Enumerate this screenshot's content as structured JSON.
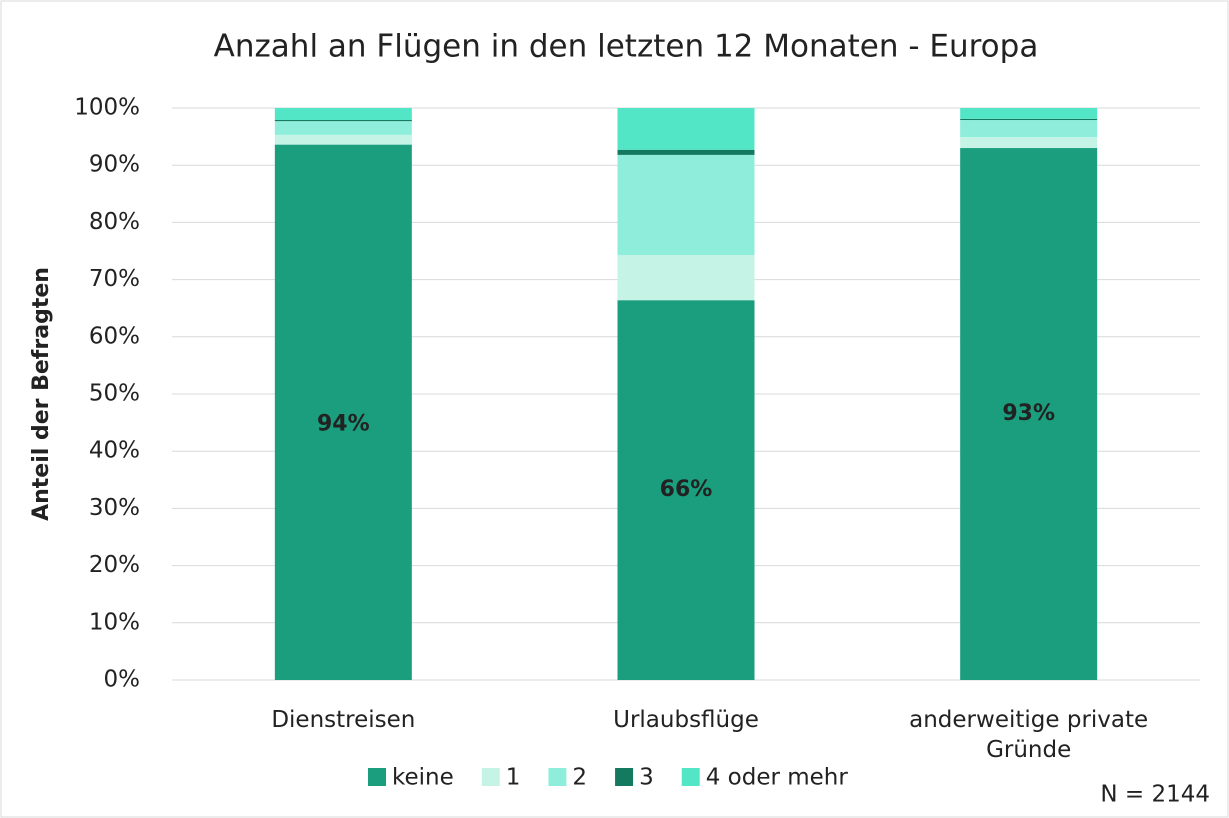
{
  "chart_data": {
    "type": "stacked_bar",
    "title": "Anzahl an Flügen in den letzten 12 Monaten - Europa",
    "y_label": "Anteil der Befragten",
    "annotation": "N = 2144",
    "categories": [
      "Dienstreisen",
      "Urlaubsflüge",
      "anderweitige private Gründe"
    ],
    "series": [
      {
        "name": "keine",
        "color": "#1a9e7e",
        "values": [
          93.6,
          66.4,
          93.0
        ],
        "value_labels": [
          "94%",
          "66%",
          "93%"
        ]
      },
      {
        "name": "1",
        "color": "#c5f3e6",
        "values": [
          1.7,
          7.9,
          1.9
        ]
      },
      {
        "name": "2",
        "color": "#8eeedb",
        "values": [
          2.4,
          17.5,
          3.0
        ]
      },
      {
        "name": "3",
        "color": "#137a5f",
        "values": [
          0.2,
          0.9,
          0.2
        ]
      },
      {
        "name": "4 oder mehr",
        "color": "#52e6c6",
        "values": [
          2.1,
          7.3,
          1.9
        ]
      }
    ],
    "ylim": [
      0,
      100
    ],
    "yticks": [
      {
        "value": 0,
        "label": "0%"
      },
      {
        "value": 10,
        "label": "10%"
      },
      {
        "value": 20,
        "label": "20%"
      },
      {
        "value": 30,
        "label": "30%"
      },
      {
        "value": 40,
        "label": "40%"
      },
      {
        "value": 50,
        "label": "50%"
      },
      {
        "value": 60,
        "label": "60%"
      },
      {
        "value": 70,
        "label": "70%"
      },
      {
        "value": 80,
        "label": "80%"
      },
      {
        "value": 90,
        "label": "90%"
      },
      {
        "value": 100,
        "label": "100%"
      }
    ],
    "grid": true,
    "legend": "bottom"
  }
}
